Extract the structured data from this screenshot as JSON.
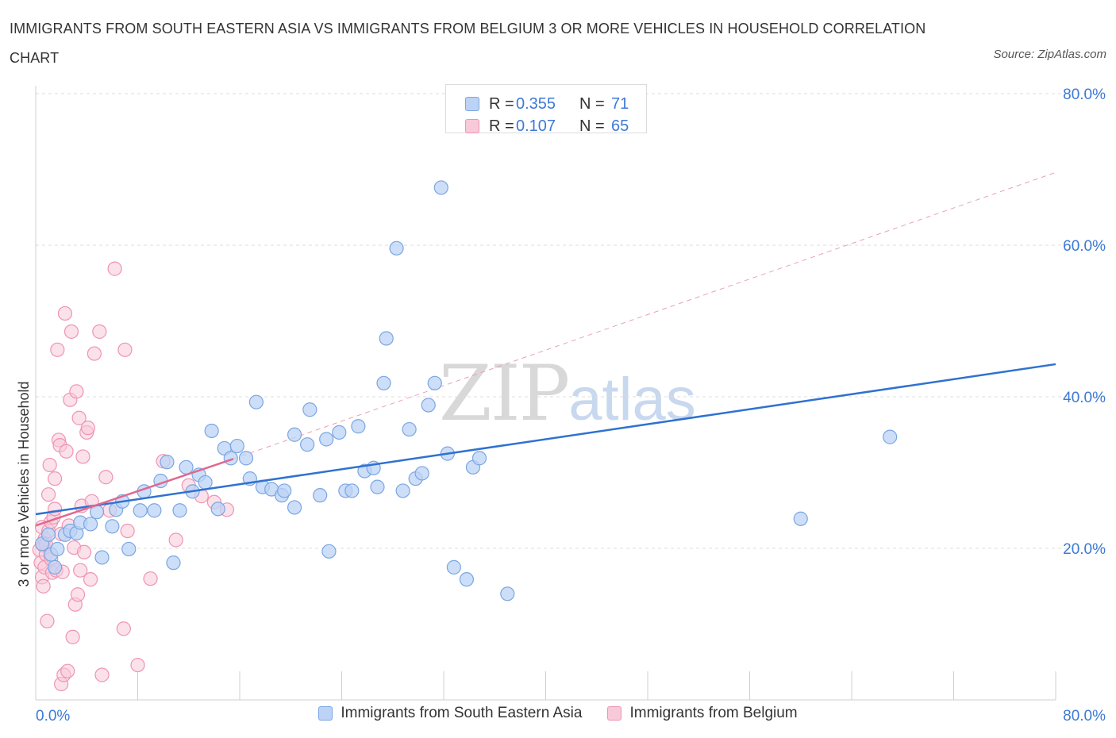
{
  "title": "IMMIGRANTS FROM SOUTH EASTERN ASIA VS IMMIGRANTS FROM BELGIUM 3 OR MORE VEHICLES IN HOUSEHOLD CORRELATION CHART",
  "source": "Source: ZipAtlas.com",
  "watermark": {
    "zip": "ZIP",
    "atlas": "atlas"
  },
  "colors": {
    "blue_fill": "#bcd3f5",
    "blue_stroke": "#7aa6e3",
    "blue_line": "#2f72d0",
    "pink_fill": "#f8c9d8",
    "pink_stroke": "#ef94b2",
    "pink_line": "#e0688f",
    "axis_text": "#3d7ad6",
    "grid": "#dddddd"
  },
  "stats_legend": [
    {
      "r_label": "R =",
      "r_value": "0.355",
      "n_label": "N =",
      "n_value": "71",
      "color": "blue"
    },
    {
      "r_label": "R =",
      "r_value": "0.107",
      "n_label": "N =",
      "n_value": "65",
      "color": "pink"
    }
  ],
  "chart_data": {
    "type": "scatter",
    "title": "IMMIGRANTS FROM SOUTH EASTERN ASIA VS IMMIGRANTS FROM BELGIUM 3 OR MORE VEHICLES IN HOUSEHOLD CORRELATION CHART",
    "xlabel": "",
    "ylabel": "3 or more Vehicles in Household",
    "xlim": [
      0,
      80
    ],
    "ylim": [
      0,
      80
    ],
    "x_tick_labels": [
      "0.0%",
      "80.0%"
    ],
    "y_ticks": [
      20,
      40,
      60,
      80
    ],
    "y_tick_labels": [
      "20.0%",
      "40.0%",
      "60.0%",
      "80.0%"
    ],
    "grid": true,
    "legend_position": "bottom-center",
    "series": [
      {
        "name": "Immigrants from South Eastern Asia",
        "color": "blue",
        "trend": {
          "x": [
            0,
            80
          ],
          "y": [
            24.5,
            44.3
          ],
          "style": "solid"
        },
        "points": [
          [
            0.5,
            20.6
          ],
          [
            1.0,
            21.8
          ],
          [
            1.2,
            19.2
          ],
          [
            1.5,
            17.5
          ],
          [
            1.7,
            19.9
          ],
          [
            2.3,
            21.8
          ],
          [
            2.7,
            22.3
          ],
          [
            3.2,
            22.0
          ],
          [
            3.5,
            23.4
          ],
          [
            4.3,
            23.2
          ],
          [
            4.8,
            24.8
          ],
          [
            5.2,
            18.8
          ],
          [
            6.0,
            22.9
          ],
          [
            6.3,
            25.1
          ],
          [
            6.8,
            26.2
          ],
          [
            7.3,
            19.9
          ],
          [
            8.2,
            25.0
          ],
          [
            8.5,
            27.5
          ],
          [
            9.3,
            25.0
          ],
          [
            9.8,
            28.9
          ],
          [
            10.3,
            31.4
          ],
          [
            10.8,
            18.1
          ],
          [
            11.3,
            25.0
          ],
          [
            11.8,
            30.7
          ],
          [
            12.3,
            27.5
          ],
          [
            12.8,
            29.7
          ],
          [
            13.3,
            28.7
          ],
          [
            13.8,
            35.5
          ],
          [
            14.3,
            25.2
          ],
          [
            14.8,
            33.2
          ],
          [
            15.3,
            31.9
          ],
          [
            15.8,
            33.5
          ],
          [
            16.5,
            31.9
          ],
          [
            16.8,
            29.2
          ],
          [
            17.3,
            39.3
          ],
          [
            17.8,
            28.1
          ],
          [
            18.5,
            27.8
          ],
          [
            19.3,
            27.0
          ],
          [
            19.5,
            27.6
          ],
          [
            20.3,
            25.4
          ],
          [
            20.3,
            35.0
          ],
          [
            21.3,
            33.7
          ],
          [
            21.5,
            38.3
          ],
          [
            22.3,
            27.0
          ],
          [
            22.8,
            34.4
          ],
          [
            23.0,
            19.6
          ],
          [
            23.8,
            35.3
          ],
          [
            24.3,
            27.6
          ],
          [
            24.8,
            27.6
          ],
          [
            25.3,
            36.1
          ],
          [
            25.8,
            30.2
          ],
          [
            26.5,
            30.6
          ],
          [
            26.8,
            28.1
          ],
          [
            27.3,
            41.8
          ],
          [
            27.5,
            47.7
          ],
          [
            28.3,
            59.6
          ],
          [
            28.8,
            27.6
          ],
          [
            29.3,
            35.7
          ],
          [
            29.8,
            29.2
          ],
          [
            30.3,
            29.9
          ],
          [
            30.8,
            38.9
          ],
          [
            31.3,
            41.8
          ],
          [
            31.8,
            67.6
          ],
          [
            32.3,
            32.5
          ],
          [
            32.8,
            17.5
          ],
          [
            33.8,
            15.9
          ],
          [
            34.3,
            30.7
          ],
          [
            34.8,
            31.9
          ],
          [
            37.0,
            14.0
          ],
          [
            60.0,
            23.9
          ],
          [
            67.0,
            34.7
          ]
        ]
      },
      {
        "name": "Immigrants from Belgium",
        "color": "pink",
        "trend": {
          "x": [
            0,
            15.5
          ],
          "y": [
            23.0,
            31.8
          ],
          "style": "solid",
          "dashed_extension": {
            "x": [
              15.5,
              80
            ],
            "y": [
              31.8,
              69.6
            ]
          }
        },
        "points": [
          [
            0.3,
            19.8
          ],
          [
            0.4,
            18.1
          ],
          [
            0.5,
            16.2
          ],
          [
            0.5,
            22.8
          ],
          [
            0.6,
            20.4
          ],
          [
            0.6,
            15.0
          ],
          [
            0.7,
            21.2
          ],
          [
            0.7,
            17.5
          ],
          [
            0.8,
            19.2
          ],
          [
            0.8,
            20.5
          ],
          [
            0.9,
            10.4
          ],
          [
            1.0,
            27.1
          ],
          [
            1.0,
            22.3
          ],
          [
            1.1,
            31.0
          ],
          [
            1.2,
            18.6
          ],
          [
            1.2,
            23.5
          ],
          [
            1.3,
            16.8
          ],
          [
            1.4,
            24.1
          ],
          [
            1.5,
            25.2
          ],
          [
            1.5,
            29.2
          ],
          [
            1.6,
            17.1
          ],
          [
            1.7,
            46.2
          ],
          [
            1.8,
            34.3
          ],
          [
            1.9,
            33.6
          ],
          [
            2.0,
            21.9
          ],
          [
            2.0,
            2.1
          ],
          [
            2.1,
            16.9
          ],
          [
            2.2,
            3.3
          ],
          [
            2.3,
            51.0
          ],
          [
            2.4,
            32.8
          ],
          [
            2.5,
            3.8
          ],
          [
            2.6,
            23.0
          ],
          [
            2.7,
            39.6
          ],
          [
            2.8,
            48.6
          ],
          [
            2.9,
            8.3
          ],
          [
            3.0,
            20.1
          ],
          [
            3.1,
            12.6
          ],
          [
            3.2,
            40.7
          ],
          [
            3.3,
            13.9
          ],
          [
            3.4,
            37.2
          ],
          [
            3.5,
            17.1
          ],
          [
            3.6,
            25.6
          ],
          [
            3.7,
            32.1
          ],
          [
            3.8,
            19.5
          ],
          [
            4.0,
            35.3
          ],
          [
            4.1,
            35.9
          ],
          [
            4.3,
            15.9
          ],
          [
            4.4,
            26.2
          ],
          [
            4.6,
            45.7
          ],
          [
            5.0,
            48.6
          ],
          [
            5.2,
            3.3
          ],
          [
            5.5,
            29.4
          ],
          [
            5.8,
            25.0
          ],
          [
            6.2,
            56.9
          ],
          [
            6.9,
            9.4
          ],
          [
            7.0,
            46.2
          ],
          [
            7.2,
            22.3
          ],
          [
            8.0,
            4.6
          ],
          [
            9.0,
            16.0
          ],
          [
            10.0,
            31.5
          ],
          [
            11.0,
            21.1
          ],
          [
            12.0,
            28.3
          ],
          [
            13.0,
            26.9
          ],
          [
            14.0,
            26.1
          ],
          [
            15.0,
            25.1
          ]
        ]
      }
    ]
  }
}
